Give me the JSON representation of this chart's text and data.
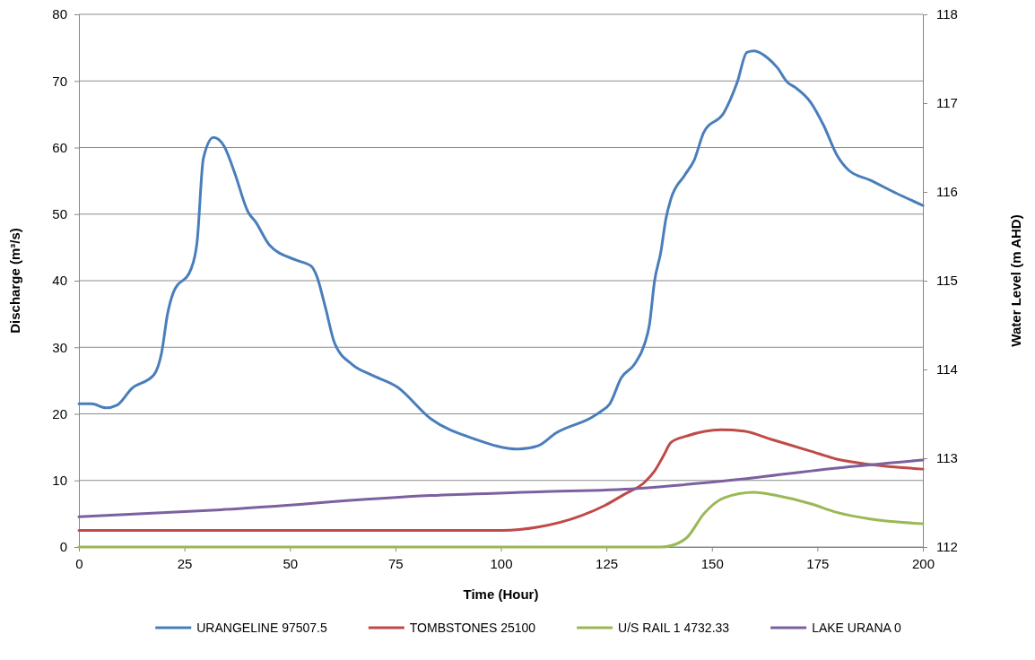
{
  "chart_data": {
    "type": "line",
    "xlabel": "Time (Hour)",
    "ylabel": "Discharge (m³/s)",
    "y2label": "Water Level (m AHD)",
    "xlim": [
      0,
      200
    ],
    "xticks": [
      0,
      25,
      50,
      75,
      100,
      125,
      150,
      175,
      200
    ],
    "ylim": [
      0,
      80
    ],
    "yticks": [
      0,
      10,
      20,
      30,
      40,
      50,
      60,
      70,
      80
    ],
    "y2lim": [
      112,
      118
    ],
    "y2ticks": [
      112,
      113,
      114,
      115,
      116,
      117,
      118
    ],
    "grid": "y",
    "legend": "bottom",
    "line_style": "solid",
    "marker": "none",
    "series": [
      {
        "name": "URANGELINE 97507.5",
        "color": "#4a7ebb",
        "x": [
          0,
          3,
          6.4,
          9,
          12.5,
          17.8,
          19.6,
          21,
          22.3,
          26.6,
          28,
          29.5,
          31.9,
          34.4,
          36.9,
          40.1,
          41.9,
          45.1,
          51.4,
          55,
          56.3,
          58.4,
          60.6,
          64.8,
          69.1,
          75.5,
          83.3,
          93.9,
          104.1,
          108.8,
          113,
          121.6,
          123.8,
          125.8,
          128.5,
          131.6,
          134,
          135.2,
          136.4,
          137.9,
          139.1,
          140.3,
          143.5,
          145.8,
          148.1,
          152.9,
          156,
          158.3,
          160,
          163.1,
          165.5,
          167.9,
          169.8,
          173.4,
          176.5,
          179.6,
          182.4,
          187.5,
          193.8,
          200
        ],
        "values": [
          21.5,
          21.5,
          20.9,
          21.3,
          23.8,
          25.9,
          29.2,
          35,
          38.1,
          41.8,
          45.8,
          58.4,
          61.5,
          60.2,
          56.2,
          50.3,
          48.8,
          45.4,
          43.1,
          42.2,
          40.8,
          36,
          30.6,
          27.4,
          25.9,
          24,
          19.3,
          16.2,
          14.7,
          15.2,
          17.1,
          19.5,
          20.4,
          21.5,
          25.4,
          27.4,
          30.4,
          33.4,
          39.9,
          44.3,
          49.3,
          52.3,
          55.8,
          58.1,
          62.3,
          65.3,
          69.8,
          74.3,
          74.5,
          73.5,
          72,
          69.8,
          69,
          66.8,
          63.3,
          58.9,
          56.6,
          55.1,
          53.1,
          51.3
        ]
      },
      {
        "name": "TOMBSTONES 25100",
        "color": "#be4b48",
        "x": [
          0,
          50,
          100.3,
          108.8,
          119,
          124.5,
          129.2,
          134,
          136.4,
          138.7,
          140.3,
          144.2,
          152.1,
          157.6,
          163.9,
          173.4,
          179.6,
          187.5,
          200
        ],
        "values": [
          2.5,
          2.5,
          2.5,
          3.0,
          4.7,
          6.2,
          7.9,
          9.7,
          11.4,
          13.9,
          15.7,
          16.7,
          17.6,
          17.4,
          16.2,
          14.4,
          13.2,
          12.4,
          11.7
        ]
      },
      {
        "name": "U/S RAIL 1 4732.33",
        "color": "#98b954",
        "x": [
          0,
          100,
          138,
          140.3,
          144.2,
          148.1,
          152.9,
          160,
          165.5,
          173.4,
          179.6,
          187.5,
          200
        ],
        "values": [
          0,
          0,
          0,
          0.2,
          1.5,
          5.0,
          7.4,
          8.2,
          7.7,
          6.5,
          5.2,
          4.2,
          3.5
        ]
      },
      {
        "name": "LAKE URANA 0",
        "color": "#7d60a0",
        "axis": "y2",
        "x": [
          0,
          33.7,
          83.3,
          108.8,
          132.4,
          156,
          179.6,
          200
        ],
        "values": [
          112.34,
          112.42,
          112.58,
          112.62,
          112.66,
          112.76,
          112.89,
          112.98
        ]
      }
    ]
  }
}
